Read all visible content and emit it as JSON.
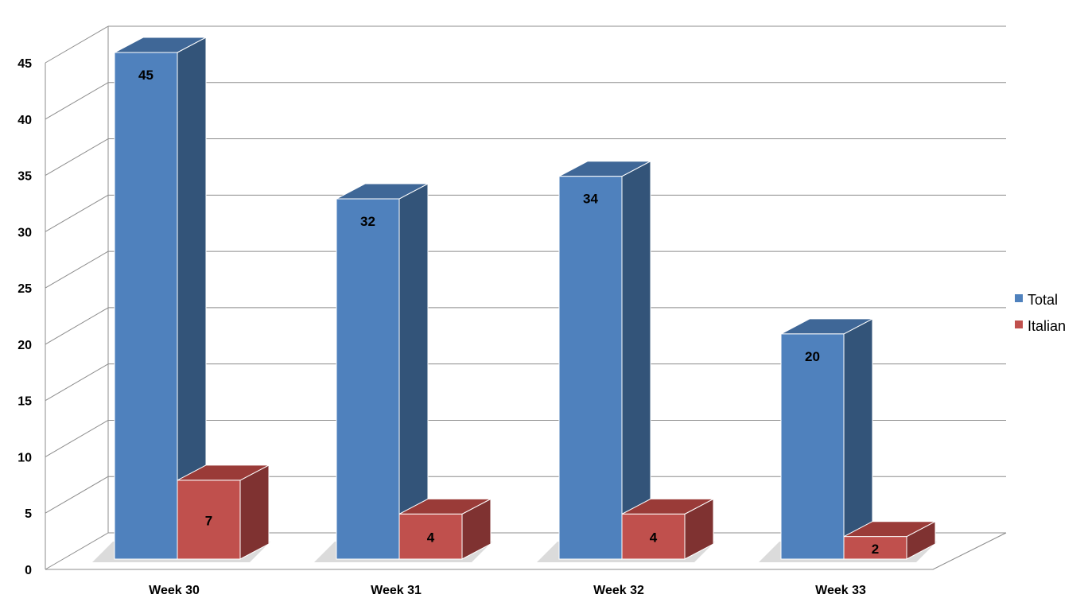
{
  "chart_data": {
    "type": "bar",
    "style": "3d-clustered-column",
    "categories": [
      "Week 30",
      "Week 31",
      "Week 32",
      "Week 33"
    ],
    "series": [
      {
        "name": "Total",
        "values": [
          45,
          32,
          34,
          20
        ],
        "color": "#4F81BD",
        "side_color": "#335479",
        "top_color": "#3F6797"
      },
      {
        "name": "Italian",
        "values": [
          7,
          4,
          4,
          2
        ],
        "color": "#C0504D",
        "side_color": "#7F3231",
        "top_color": "#9A3B38"
      }
    ],
    "y_ticks": [
      "0",
      "5",
      "10",
      "15",
      "20",
      "25",
      "30",
      "35",
      "40",
      "45"
    ],
    "ylim": [
      0,
      45
    ],
    "grid": true,
    "gridline_color": "#8C8C8C",
    "legend_position": "right",
    "title": "",
    "xlabel": "",
    "ylabel": ""
  }
}
